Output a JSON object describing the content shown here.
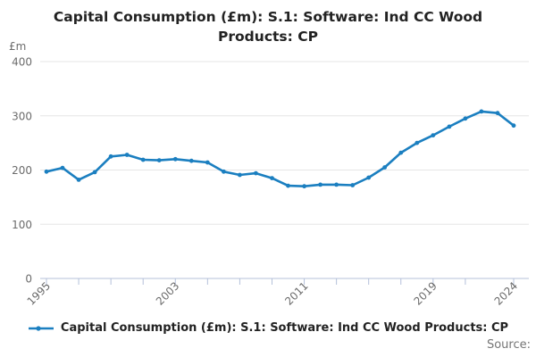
{
  "title_line1": "Capital Consumption (£m): S.1: Software: Ind CC Wood",
  "title_line2": "Products: CP",
  "y_axis_unit": "£m",
  "source_label": "Source:",
  "legend": {
    "label": "Capital Consumption (£m): S.1: Software: Ind CC Wood Products: CP"
  },
  "colors": {
    "series_line": "#1b7fc0",
    "gridline": "#e6e6e6",
    "axis_line": "#b4c0da",
    "tick_label": "#6b6b6b"
  },
  "chart_data": {
    "type": "line",
    "title": "Capital Consumption (£m): S.1: Software: Ind CC Wood Products: CP",
    "ylabel": "£m",
    "ylim": [
      0,
      400
    ],
    "yticks": [
      0,
      100,
      200,
      300,
      400
    ],
    "xtick_labels": [
      "1995",
      "2003",
      "2011",
      "2019",
      "2024"
    ],
    "xticks_minor": [
      1995,
      1997,
      1999,
      2001,
      2003,
      2005,
      2007,
      2009,
      2011,
      2013,
      2015,
      2017,
      2019,
      2021,
      2024
    ],
    "grid": true,
    "legend_position": "bottom",
    "x": [
      1995,
      1996,
      1997,
      1998,
      1999,
      2000,
      2001,
      2002,
      2003,
      2004,
      2005,
      2006,
      2007,
      2008,
      2009,
      2010,
      2011,
      2012,
      2013,
      2014,
      2015,
      2016,
      2017,
      2018,
      2019,
      2020,
      2021,
      2022,
      2023,
      2024
    ],
    "series": [
      {
        "name": "Capital Consumption (£m): S.1: Software: Ind CC Wood Products: CP",
        "values": [
          197,
          204,
          182,
          196,
          225,
          228,
          219,
          218,
          220,
          217,
          214,
          197,
          191,
          194,
          185,
          171,
          170,
          173,
          173,
          172,
          186,
          205,
          232,
          250,
          264,
          280,
          295,
          308,
          305,
          282
        ]
      }
    ]
  }
}
